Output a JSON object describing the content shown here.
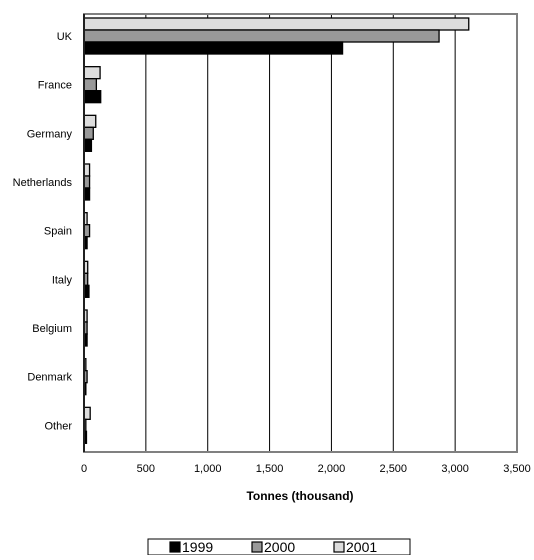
{
  "chart_data": {
    "type": "bar",
    "orientation": "horizontal",
    "categories": [
      "UK",
      "France",
      "Germany",
      "Netherlands",
      "Spain",
      "Italy",
      "Belgium",
      "Denmark",
      "Other"
    ],
    "series": [
      {
        "name": "1999",
        "color": "#000000",
        "values": [
          2090,
          135,
          60,
          45,
          25,
          40,
          25,
          15,
          20
        ]
      },
      {
        "name": "2000",
        "color": "#999999",
        "values": [
          2870,
          100,
          75,
          45,
          45,
          30,
          25,
          25,
          15
        ]
      },
      {
        "name": "2001",
        "color": "#dddddd",
        "values": [
          3110,
          130,
          95,
          45,
          25,
          30,
          25,
          15,
          50
        ]
      }
    ],
    "xlabel": "Tonnes (thousand)",
    "xlim": [
      0,
      3500
    ],
    "xticks": [
      0,
      500,
      1000,
      1500,
      2000,
      2500,
      3000,
      3500
    ],
    "xtick_labels": [
      "0",
      "500",
      "1,000",
      "1,500",
      "2,000",
      "2,500",
      "3,000",
      "3,500"
    ],
    "grid": "vertical",
    "legend": "bottom"
  }
}
